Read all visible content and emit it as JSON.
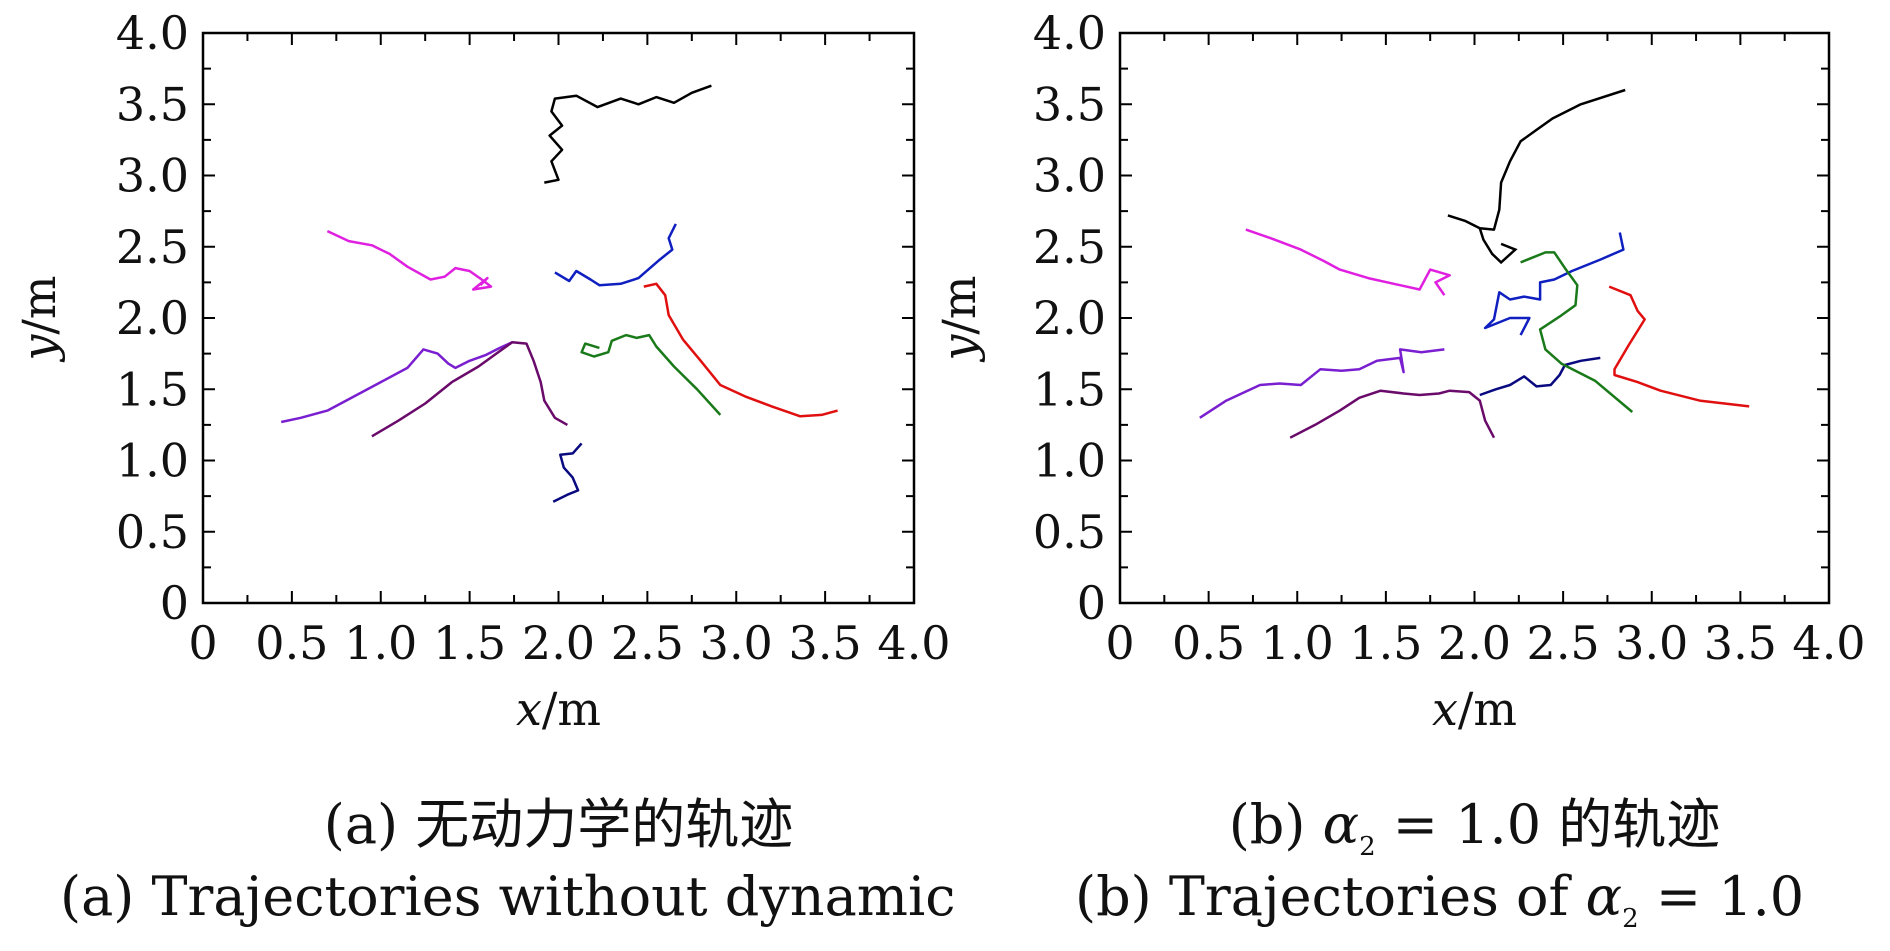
{
  "figure": {
    "captions": {
      "a_cn": "(a) 无动力学的轨迹",
      "b_cn_prefix": "(b) ",
      "b_cn_alpha": "α",
      "b_cn_sub": "2",
      "b_cn_suffix": " = 1.0 的轨迹",
      "a_en": "(a) Trajectories without dynamic",
      "b_en_prefix": "(b) Trajectories of ",
      "b_en_alpha": "α",
      "b_en_sub": "2",
      "b_en_suffix": " = 1.0"
    }
  },
  "chart_data": [
    {
      "type": "line",
      "panel": "a",
      "title": "(a) 无动力学的轨迹 / (a) Trajectories without dynamic",
      "xlabel_var": "x",
      "xlabel_unit": "/m",
      "ylabel_var": "y",
      "ylabel_unit": "/m",
      "xlim": [
        0,
        4.0
      ],
      "ylim": [
        0,
        4.0
      ],
      "xticks": [
        "0",
        "0.5",
        "1.0",
        "1.5",
        "2.0",
        "2.5",
        "3.0",
        "3.5",
        "4.0"
      ],
      "yticks": [
        "0",
        "0.5",
        "1.0",
        "1.5",
        "2.0",
        "2.5",
        "3.0",
        "3.5",
        "4.0"
      ],
      "grid": false,
      "legend": "none",
      "series": [
        {
          "name": "black",
          "color": "#000000",
          "points": [
            [
              1.92,
              2.95
            ],
            [
              2.0,
              2.97
            ],
            [
              1.96,
              3.1
            ],
            [
              2.02,
              3.18
            ],
            [
              1.95,
              3.28
            ],
            [
              2.02,
              3.35
            ],
            [
              1.96,
              3.45
            ],
            [
              1.98,
              3.54
            ],
            [
              2.1,
              3.56
            ],
            [
              2.22,
              3.48
            ],
            [
              2.35,
              3.54
            ],
            [
              2.45,
              3.5
            ],
            [
              2.55,
              3.55
            ],
            [
              2.65,
              3.51
            ],
            [
              2.75,
              3.58
            ],
            [
              2.86,
              3.63
            ]
          ]
        },
        {
          "name": "magenta",
          "color": "#e020e0",
          "points": [
            [
              0.7,
              2.61
            ],
            [
              0.82,
              2.54
            ],
            [
              0.95,
              2.51
            ],
            [
              1.05,
              2.45
            ],
            [
              1.15,
              2.36
            ],
            [
              1.28,
              2.27
            ],
            [
              1.36,
              2.29
            ],
            [
              1.42,
              2.35
            ],
            [
              1.5,
              2.33
            ],
            [
              1.58,
              2.26
            ],
            [
              1.62,
              2.22
            ],
            [
              1.52,
              2.2
            ],
            [
              1.6,
              2.28
            ],
            [
              1.56,
              2.23
            ]
          ]
        },
        {
          "name": "violet",
          "color": "#7a1fd0",
          "points": [
            [
              0.44,
              1.27
            ],
            [
              0.55,
              1.3
            ],
            [
              0.7,
              1.35
            ],
            [
              0.85,
              1.45
            ],
            [
              1.0,
              1.55
            ],
            [
              1.15,
              1.65
            ],
            [
              1.24,
              1.78
            ],
            [
              1.32,
              1.75
            ],
            [
              1.38,
              1.68
            ],
            [
              1.42,
              1.65
            ],
            [
              1.5,
              1.7
            ],
            [
              1.59,
              1.74
            ],
            [
              1.67,
              1.79
            ],
            [
              1.74,
              1.83
            ]
          ]
        },
        {
          "name": "dark-purple",
          "color": "#6a0a6a",
          "points": [
            [
              0.95,
              1.17
            ],
            [
              1.1,
              1.28
            ],
            [
              1.25,
              1.4
            ],
            [
              1.4,
              1.55
            ],
            [
              1.55,
              1.66
            ],
            [
              1.65,
              1.75
            ],
            [
              1.74,
              1.83
            ],
            [
              1.82,
              1.82
            ],
            [
              1.86,
              1.7
            ],
            [
              1.9,
              1.55
            ],
            [
              1.92,
              1.42
            ],
            [
              1.98,
              1.3
            ],
            [
              2.05,
              1.25
            ]
          ]
        },
        {
          "name": "blue",
          "color": "#1020c0",
          "points": [
            [
              1.98,
              2.32
            ],
            [
              2.06,
              2.26
            ],
            [
              2.1,
              2.33
            ],
            [
              2.18,
              2.27
            ],
            [
              2.23,
              2.23
            ],
            [
              2.35,
              2.24
            ],
            [
              2.45,
              2.28
            ],
            [
              2.57,
              2.41
            ],
            [
              2.64,
              2.48
            ],
            [
              2.62,
              2.56
            ],
            [
              2.66,
              2.66
            ]
          ]
        },
        {
          "name": "red",
          "color": "#e01010",
          "points": [
            [
              2.48,
              2.22
            ],
            [
              2.55,
              2.24
            ],
            [
              2.6,
              2.16
            ],
            [
              2.62,
              2.02
            ],
            [
              2.7,
              1.85
            ],
            [
              2.8,
              1.7
            ],
            [
              2.91,
              1.53
            ],
            [
              3.05,
              1.45
            ],
            [
              3.2,
              1.38
            ],
            [
              3.36,
              1.31
            ],
            [
              3.48,
              1.32
            ],
            [
              3.57,
              1.35
            ]
          ]
        },
        {
          "name": "green",
          "color": "#1a7a1a",
          "points": [
            [
              2.23,
              1.79
            ],
            [
              2.15,
              1.82
            ],
            [
              2.13,
              1.76
            ],
            [
              2.2,
              1.73
            ],
            [
              2.28,
              1.76
            ],
            [
              2.3,
              1.84
            ],
            [
              2.38,
              1.88
            ],
            [
              2.44,
              1.86
            ],
            [
              2.51,
              1.88
            ],
            [
              2.55,
              1.8
            ],
            [
              2.65,
              1.66
            ],
            [
              2.78,
              1.5
            ],
            [
              2.91,
              1.32
            ]
          ]
        },
        {
          "name": "navy",
          "color": "#0a0a80",
          "points": [
            [
              2.13,
              1.12
            ],
            [
              2.08,
              1.05
            ],
            [
              2.01,
              1.04
            ],
            [
              2.03,
              0.95
            ],
            [
              2.08,
              0.88
            ],
            [
              2.11,
              0.79
            ],
            [
              2.05,
              0.76
            ],
            [
              1.97,
              0.71
            ]
          ]
        }
      ]
    },
    {
      "type": "line",
      "panel": "b",
      "title": "(b) α2 = 1.0 的轨迹 / (b) Trajectories of α2 = 1.0",
      "xlabel_var": "x",
      "xlabel_unit": "/m",
      "ylabel_var": "y",
      "ylabel_unit": "/m",
      "xlim": [
        0,
        4.0
      ],
      "ylim": [
        0,
        4.0
      ],
      "xticks": [
        "0",
        "0.5",
        "1.0",
        "1.5",
        "2.0",
        "2.5",
        "3.0",
        "3.5",
        "4.0"
      ],
      "yticks": [
        "0",
        "0.5",
        "1.0",
        "1.5",
        "2.0",
        "2.5",
        "3.0",
        "3.5",
        "4.0"
      ],
      "grid": false,
      "legend": "none",
      "series": [
        {
          "name": "black",
          "color": "#000000",
          "points": [
            [
              1.85,
              2.72
            ],
            [
              1.95,
              2.68
            ],
            [
              2.03,
              2.63
            ],
            [
              2.11,
              2.62
            ],
            [
              2.14,
              2.76
            ],
            [
              2.15,
              2.95
            ],
            [
              2.2,
              3.1
            ],
            [
              2.26,
              3.24
            ],
            [
              2.35,
              3.32
            ],
            [
              2.44,
              3.4
            ],
            [
              2.6,
              3.5
            ],
            [
              2.85,
              3.6
            ]
          ],
          "extra": [
            [
              2.03,
              2.63
            ],
            [
              2.05,
              2.55
            ],
            [
              2.1,
              2.45
            ],
            [
              2.15,
              2.39
            ],
            [
              2.23,
              2.48
            ],
            [
              2.15,
              2.52
            ]
          ]
        },
        {
          "name": "magenta",
          "color": "#e020e0",
          "points": [
            [
              0.71,
              2.62
            ],
            [
              0.85,
              2.56
            ],
            [
              1.02,
              2.48
            ],
            [
              1.15,
              2.4
            ],
            [
              1.24,
              2.34
            ],
            [
              1.4,
              2.28
            ],
            [
              1.58,
              2.23
            ],
            [
              1.69,
              2.2
            ],
            [
              1.75,
              2.34
            ],
            [
              1.86,
              2.3
            ],
            [
              1.78,
              2.25
            ],
            [
              1.83,
              2.16
            ]
          ]
        },
        {
          "name": "violet",
          "color": "#7a1fd0",
          "points": [
            [
              0.45,
              1.3
            ],
            [
              0.6,
              1.42
            ],
            [
              0.79,
              1.53
            ],
            [
              0.9,
              1.54
            ],
            [
              1.02,
              1.53
            ],
            [
              1.13,
              1.64
            ],
            [
              1.25,
              1.63
            ],
            [
              1.35,
              1.64
            ],
            [
              1.45,
              1.7
            ],
            [
              1.58,
              1.72
            ],
            [
              1.6,
              1.62
            ],
            [
              1.58,
              1.78
            ],
            [
              1.7,
              1.76
            ],
            [
              1.83,
              1.78
            ]
          ]
        },
        {
          "name": "dark-purple",
          "color": "#6a0a6a",
          "points": [
            [
              0.96,
              1.16
            ],
            [
              1.1,
              1.25
            ],
            [
              1.24,
              1.35
            ],
            [
              1.35,
              1.44
            ],
            [
              1.47,
              1.49
            ],
            [
              1.6,
              1.47
            ],
            [
              1.69,
              1.46
            ],
            [
              1.8,
              1.47
            ],
            [
              1.86,
              1.49
            ],
            [
              1.97,
              1.48
            ],
            [
              2.03,
              1.42
            ],
            [
              2.06,
              1.28
            ],
            [
              2.11,
              1.16
            ]
          ]
        },
        {
          "name": "navy",
          "color": "#0a0a80",
          "points": [
            [
              2.03,
              1.46
            ],
            [
              2.12,
              1.5
            ],
            [
              2.2,
              1.53
            ],
            [
              2.28,
              1.59
            ],
            [
              2.35,
              1.52
            ],
            [
              2.43,
              1.53
            ],
            [
              2.48,
              1.6
            ],
            [
              2.51,
              1.67
            ],
            [
              2.6,
              1.7
            ],
            [
              2.71,
              1.72
            ]
          ]
        },
        {
          "name": "blue",
          "color": "#1020c0",
          "points": [
            [
              2.82,
              2.6
            ],
            [
              2.84,
              2.48
            ],
            [
              2.71,
              2.41
            ],
            [
              2.55,
              2.33
            ],
            [
              2.45,
              2.27
            ],
            [
              2.37,
              2.25
            ],
            [
              2.37,
              2.13
            ],
            [
              2.28,
              2.15
            ],
            [
              2.2,
              2.13
            ],
            [
              2.14,
              2.18
            ],
            [
              2.11,
              1.99
            ],
            [
              2.06,
              1.93
            ],
            [
              2.2,
              2.0
            ],
            [
              2.31,
              2.0
            ],
            [
              2.26,
              1.88
            ]
          ]
        },
        {
          "name": "green",
          "color": "#1a7a1a",
          "points": [
            [
              2.26,
              2.39
            ],
            [
              2.4,
              2.46
            ],
            [
              2.45,
              2.46
            ],
            [
              2.51,
              2.35
            ],
            [
              2.58,
              2.23
            ],
            [
              2.57,
              2.09
            ],
            [
              2.48,
              2.01
            ],
            [
              2.37,
              1.92
            ],
            [
              2.4,
              1.78
            ],
            [
              2.49,
              1.68
            ],
            [
              2.68,
              1.56
            ],
            [
              2.89,
              1.34
            ]
          ]
        },
        {
          "name": "red",
          "color": "#e01010",
          "points": [
            [
              2.76,
              2.22
            ],
            [
              2.88,
              2.16
            ],
            [
              2.92,
              2.05
            ],
            [
              2.96,
              1.99
            ],
            [
              2.87,
              1.81
            ],
            [
              2.79,
              1.64
            ],
            [
              2.79,
              1.6
            ],
            [
              2.92,
              1.55
            ],
            [
              3.05,
              1.49
            ],
            [
              3.27,
              1.42
            ],
            [
              3.55,
              1.38
            ]
          ]
        }
      ]
    }
  ]
}
